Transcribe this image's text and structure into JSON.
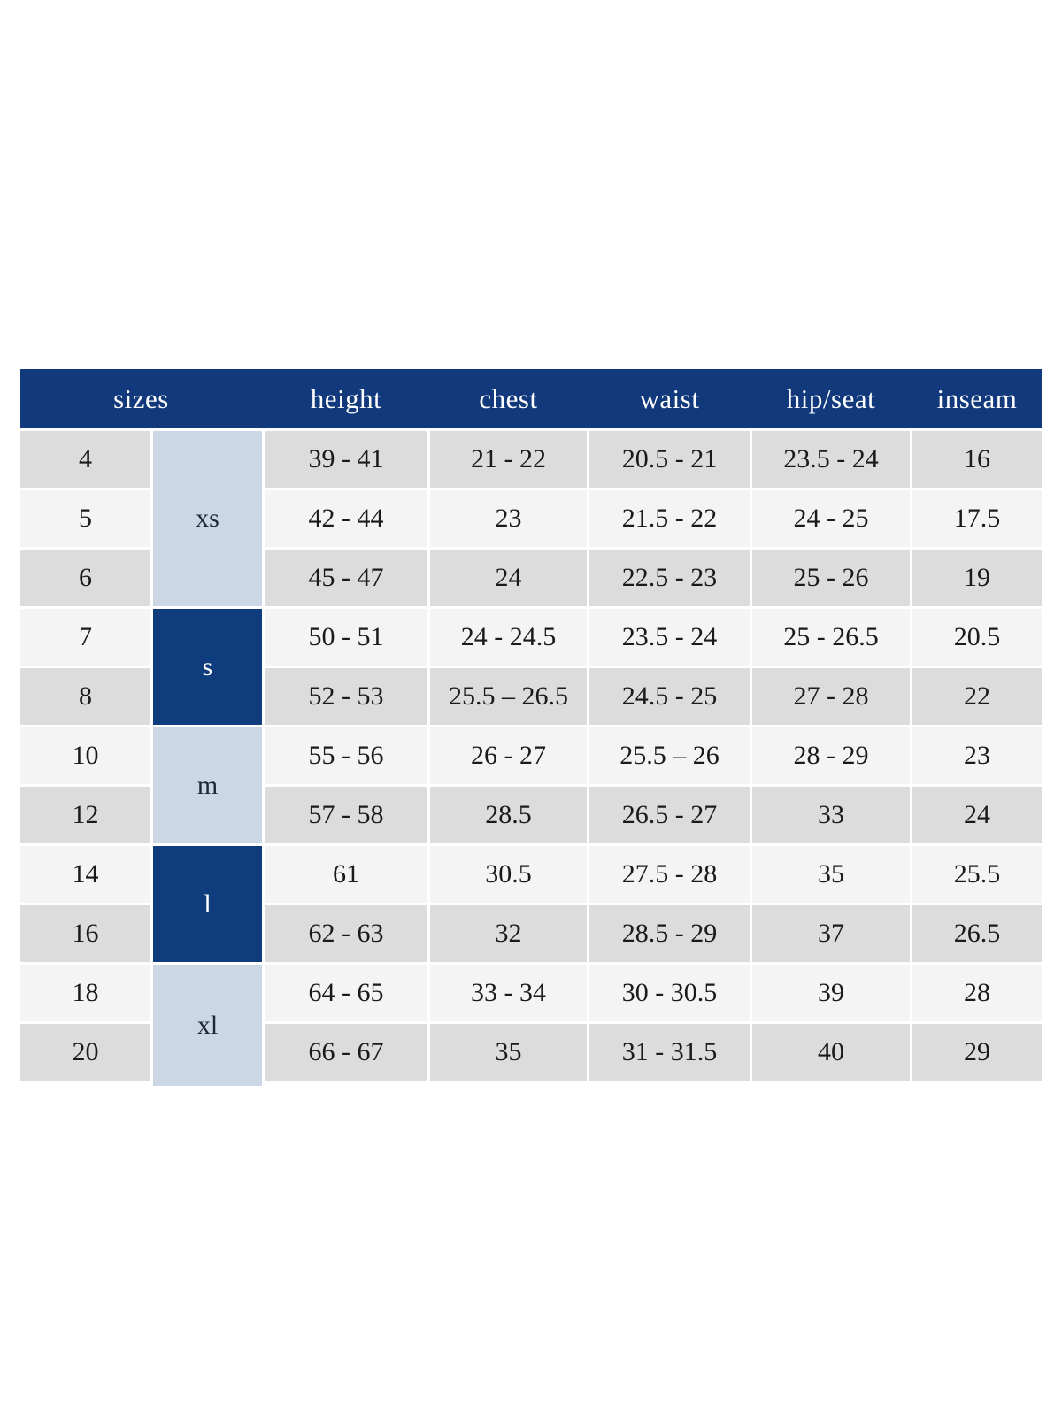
{
  "colors": {
    "page_bg": "#FFFFFF",
    "header_bg": "#12397B",
    "header_text": "#FFFFFF",
    "group_dark_bg": "#0E3C7C",
    "group_light_bg": "#CCD7E6",
    "group_light_text": "#1D2735",
    "row_gray_bg": "#DCDCDC",
    "row_light_bg": "#F4F4F4",
    "cell_text": "#1A1A1A",
    "divider": "#FFFFFF"
  },
  "chart_data": {
    "type": "table",
    "header": {
      "sizes": "sizes",
      "height": "height",
      "chest": "chest",
      "waist": "waist",
      "hip_seat": "hip/seat",
      "inseam": "inseam"
    },
    "groups": [
      {
        "label": "xs",
        "row_span": 3,
        "style": "light"
      },
      {
        "label": "s",
        "row_span": 2,
        "style": "dark"
      },
      {
        "label": "m",
        "row_span": 2,
        "style": "light"
      },
      {
        "label": "l",
        "row_span": 2,
        "style": "dark"
      },
      {
        "label": "xl",
        "row_span": 2,
        "style": "light"
      }
    ],
    "rows": [
      {
        "size": "4",
        "group": "xs",
        "height": "39 - 41",
        "chest": "21 - 22",
        "waist": "20.5 - 21",
        "hip_seat": "23.5 - 24",
        "inseam": "16"
      },
      {
        "size": "5",
        "group": "xs",
        "height": "42 - 44",
        "chest": "23",
        "waist": "21.5 - 22",
        "hip_seat": "24 - 25",
        "inseam": "17.5"
      },
      {
        "size": "6",
        "group": "xs",
        "height": "45 - 47",
        "chest": "24",
        "waist": "22.5 - 23",
        "hip_seat": "25 - 26",
        "inseam": "19"
      },
      {
        "size": "7",
        "group": "s",
        "height": "50 - 51",
        "chest": "24 - 24.5",
        "waist": "23.5 - 24",
        "hip_seat": "25 - 26.5",
        "inseam": "20.5"
      },
      {
        "size": "8",
        "group": "s",
        "height": "52 - 53",
        "chest": "25.5 – 26.5",
        "waist": "24.5 - 25",
        "hip_seat": "27 - 28",
        "inseam": "22"
      },
      {
        "size": "10",
        "group": "m",
        "height": "55 - 56",
        "chest": "26 - 27",
        "waist": "25.5 – 26",
        "hip_seat": "28 - 29",
        "inseam": "23"
      },
      {
        "size": "12",
        "group": "m",
        "height": "57 - 58",
        "chest": "28.5",
        "waist": "26.5 - 27",
        "hip_seat": "33",
        "inseam": "24"
      },
      {
        "size": "14",
        "group": "l",
        "height": "61",
        "chest": "30.5",
        "waist": "27.5 - 28",
        "hip_seat": "35",
        "inseam": "25.5"
      },
      {
        "size": "16",
        "group": "l",
        "height": "62 - 63",
        "chest": "32",
        "waist": "28.5 - 29",
        "hip_seat": "37",
        "inseam": "26.5"
      },
      {
        "size": "18",
        "group": "xl",
        "height": "64 - 65",
        "chest": "33 - 34",
        "waist": "30 - 30.5",
        "hip_seat": "39",
        "inseam": "28"
      },
      {
        "size": "20",
        "group": "xl",
        "height": "66 - 67",
        "chest": "35",
        "waist": "31 - 31.5",
        "hip_seat": "40",
        "inseam": "29"
      }
    ]
  }
}
